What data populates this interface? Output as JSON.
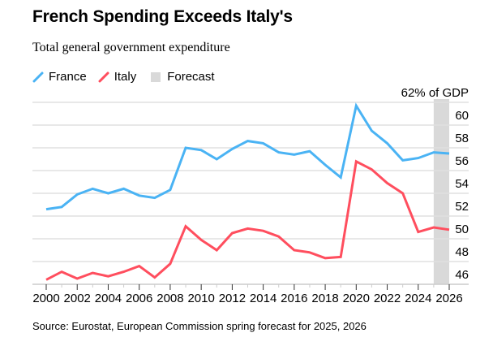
{
  "title": "French Spending Exceeds Italy's",
  "subtitle": "Total general government expenditure",
  "legend": [
    {
      "label": "France",
      "color": "#4ab3f4",
      "type": "line"
    },
    {
      "label": "Italy",
      "color": "#ff4e5e",
      "type": "line"
    },
    {
      "label": "Forecast",
      "color": "#d9d9d9",
      "type": "box"
    }
  ],
  "source": "Source: Eurostat, European Commission spring forecast for 2025, 2026",
  "chart_data": {
    "type": "line",
    "title": "French Spending Exceeds Italy's",
    "subtitle": "Total general government expenditure",
    "xlabel": "",
    "ylabel": "62% of GDP",
    "x": [
      2000,
      2001,
      2002,
      2003,
      2004,
      2005,
      2006,
      2007,
      2008,
      2009,
      2010,
      2011,
      2012,
      2013,
      2014,
      2015,
      2016,
      2017,
      2018,
      2019,
      2020,
      2021,
      2022,
      2023,
      2024,
      2025,
      2026
    ],
    "series": [
      {
        "name": "France",
        "color": "#4ab3f4",
        "values": [
          52.6,
          52.8,
          53.9,
          54.4,
          54.0,
          54.4,
          53.8,
          53.6,
          54.3,
          58.0,
          57.8,
          57.0,
          57.9,
          58.6,
          58.4,
          57.6,
          57.4,
          57.7,
          56.5,
          55.4,
          61.7,
          59.5,
          58.4,
          56.9,
          57.1,
          57.6,
          57.5
        ]
      },
      {
        "name": "Italy",
        "color": "#ff4e5e",
        "values": [
          46.4,
          47.1,
          46.5,
          47.0,
          46.7,
          47.1,
          47.6,
          46.6,
          47.8,
          51.1,
          49.9,
          49.0,
          50.5,
          50.9,
          50.7,
          50.2,
          49.0,
          48.8,
          48.3,
          48.4,
          56.8,
          56.1,
          54.9,
          54.0,
          50.6,
          51.0,
          50.8
        ]
      }
    ],
    "forecast_range": [
      2025,
      2026
    ],
    "forecast_label": "Forecast",
    "ylim": [
      46,
      62
    ],
    "yticks": [
      46,
      48,
      50,
      52,
      54,
      56,
      58,
      60,
      62
    ],
    "ytick_labels": [
      "46",
      "48",
      "50",
      "52",
      "54",
      "56",
      "58",
      "60",
      "62% of GDP"
    ],
    "xlim": [
      2000,
      2026
    ],
    "xticks_labeled": [
      2000,
      2002,
      2004,
      2006,
      2008,
      2010,
      2012,
      2014,
      2016,
      2018,
      2020,
      2022,
      2024,
      2026
    ],
    "grid": true,
    "legend_position": "top-left"
  }
}
